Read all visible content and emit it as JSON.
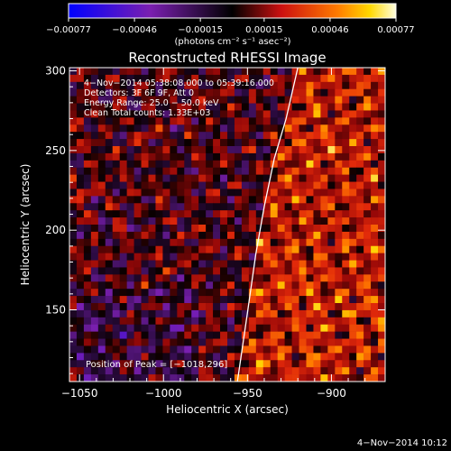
{
  "chart_data": {
    "type": "heatmap",
    "title": "Reconstructed RHESSI Image",
    "xlabel": "Heliocentric X (arcsec)",
    "ylabel": "Heliocentric Y (arcsec)",
    "xlim": [
      -1056,
      -868
    ],
    "ylim": [
      105,
      302
    ],
    "x_ticks": [
      -1050,
      -1000,
      -950,
      -900
    ],
    "x_tick_labels": [
      "−1050",
      "−1000",
      "−950",
      "−900"
    ],
    "y_ticks": [
      150,
      200,
      250,
      300
    ],
    "y_tick_labels": [
      "150",
      "200",
      "250",
      "300"
    ],
    "colorbar": {
      "ticks": [
        -0.00077,
        -0.00046,
        -0.00015,
        0.00015,
        0.00046,
        0.00077
      ],
      "tick_labels": [
        "−0.00077",
        "−0.00046",
        "−0.00015",
        "0.00015",
        "0.00046",
        "0.00077"
      ],
      "unit_label": "(photons cm⁻² s⁻¹ asec⁻²)",
      "range": [
        -0.00077,
        0.00077
      ]
    },
    "annotations": [
      "4−Nov−2014 05:38:08.000 to 05:39:16.000",
      "Detectors: 3F 6F 9F, Att 0",
      "Energy Range: 25.0 − 50.0 keV",
      "Clean     Total counts: 1.33E+03"
    ],
    "peak_label": "Position of Peak = [−1018,296]",
    "footer_date": "4−Nov−2014 10:12",
    "limb": [
      [
        -956,
        105
      ],
      [
        -950,
        148
      ],
      [
        -945,
        185
      ],
      [
        -940,
        215
      ],
      [
        -934,
        245
      ],
      [
        -927,
        270
      ],
      [
        -920,
        302
      ]
    ],
    "colors": {
      "background": "#000000",
      "text": "#ffffff",
      "limb": "#ffffff"
    }
  }
}
